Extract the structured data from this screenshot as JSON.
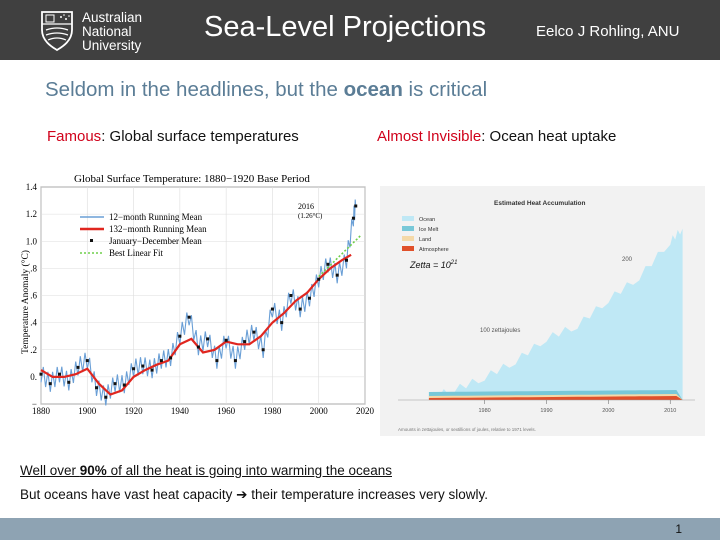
{
  "header": {
    "logo_lines": [
      "Australian",
      "National",
      "University"
    ],
    "title": "Sea-Level Projections",
    "author": "Eelco J Rohling, ANU"
  },
  "subtitle": {
    "before": "Seldom in the headlines, but the ",
    "bold": "ocean",
    "after": " is critical"
  },
  "captions": {
    "left_red": "Famous",
    "left_rest": ": Global surface temperatures",
    "right_red": "Almost Invisible",
    "right_rest": ": Ocean heat uptake"
  },
  "bottom": {
    "line1_before": "Well over ",
    "line1_bold": "90%",
    "line1_after": " of all the heat is going into warming the oceans",
    "line2_before": "But oceans have vast heat capacity ",
    "line2_arrow": "➔",
    "line2_after": " their temperature increases very slowly."
  },
  "page_number": "1",
  "colors": {
    "header_bg": "#404040",
    "accent": "#5b7d96",
    "red": "#d0021b",
    "footer": "#8ea3b3"
  },
  "chart_data": [
    {
      "type": "line",
      "title": "Global Surface Temperature: 1880−1920 Base Period",
      "ylabel": "Temperature Anomaly (°C)",
      "xlim": [
        1880,
        2020
      ],
      "ylim": [
        -0.2,
        1.4
      ],
      "x_ticks": [
        "1880",
        "1900",
        "1920",
        "1940",
        "1960",
        "1980",
        "2000",
        "2020"
      ],
      "y_ticks": [
        "−",
        "0.",
        ".2",
        ".4",
        ".6",
        ".8",
        "1.0",
        "1.2",
        "1.4"
      ],
      "annotation": [
        "2016",
        "(1.26°C)"
      ],
      "legend": [
        "12−month Running Mean",
        "132−month Running Mean",
        "January−December Mean",
        "Best Linear Fit"
      ],
      "series": [
        {
          "name": "132−month Running Mean",
          "x": [
            1880,
            1885,
            1890,
            1895,
            1900,
            1905,
            1910,
            1915,
            1920,
            1925,
            1930,
            1935,
            1940,
            1945,
            1950,
            1955,
            1960,
            1965,
            1970,
            1975,
            1980,
            1985,
            1990,
            1995,
            2000,
            2005,
            2010,
            2014
          ],
          "values": [
            0.05,
            0.0,
            0.0,
            0.02,
            0.06,
            -0.05,
            -0.13,
            -0.1,
            0.0,
            0.05,
            0.09,
            0.12,
            0.24,
            0.28,
            0.18,
            0.2,
            0.26,
            0.24,
            0.24,
            0.3,
            0.4,
            0.47,
            0.56,
            0.62,
            0.72,
            0.8,
            0.86,
            0.9
          ]
        },
        {
          "name": "January−December Mean",
          "x": [
            1880,
            1884,
            1888,
            1892,
            1896,
            1900,
            1904,
            1908,
            1912,
            1916,
            1920,
            1924,
            1928,
            1932,
            1936,
            1940,
            1944,
            1948,
            1952,
            1956,
            1960,
            1964,
            1968,
            1972,
            1976,
            1980,
            1984,
            1988,
            1992,
            1996,
            2000,
            2004,
            2008,
            2012,
            2015,
            2016
          ],
          "values": [
            0.02,
            -0.05,
            0.02,
            -0.04,
            0.07,
            0.12,
            -0.08,
            -0.15,
            -0.05,
            -0.06,
            0.06,
            0.08,
            0.05,
            0.12,
            0.14,
            0.3,
            0.44,
            0.22,
            0.28,
            0.12,
            0.27,
            0.12,
            0.26,
            0.33,
            0.2,
            0.5,
            0.4,
            0.6,
            0.5,
            0.58,
            0.72,
            0.83,
            0.75,
            0.86,
            1.17,
            1.26
          ]
        },
        {
          "name": "Best Linear Fit",
          "x": [
            2000,
            2018
          ],
          "values": [
            0.74,
            1.04
          ]
        }
      ]
    },
    {
      "type": "area",
      "title": "Estimated Heat Accumulation",
      "legend": [
        "Ocean",
        "Ice Melt",
        "Land",
        "Atmosphere"
      ],
      "annotations": [
        "Zetta = 10",
        "21",
        "200",
        "100 zettajoules"
      ],
      "x_ticks": [
        "1980",
        "1990",
        "2000",
        "2010"
      ],
      "footnote": "Amounts in zettajoules, or sextillions of joules, relative to 1971 levels.",
      "series": [
        {
          "name": "Ocean",
          "x": [
            1971,
            1975,
            1980,
            1985,
            1990,
            1995,
            2000,
            2005,
            2010,
            2012
          ],
          "values": [
            5,
            15,
            35,
            60,
            95,
            115,
            155,
            190,
            245,
            265
          ]
        }
      ]
    }
  ]
}
